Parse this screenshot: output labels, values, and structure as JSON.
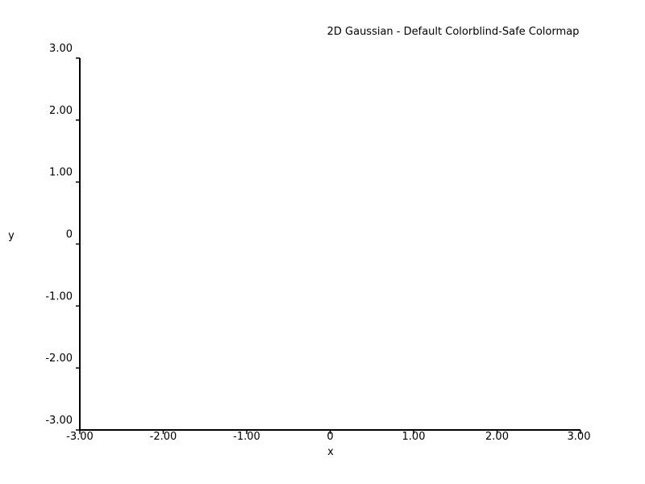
{
  "chart_data": {
    "type": "heatmap",
    "title": "2D Gaussian - Default Colorblind-Safe Colormap",
    "xlabel": "x",
    "ylabel": "y",
    "xlim": [
      -3,
      3
    ],
    "ylim": [
      -3,
      3
    ],
    "x_ticks": [
      -3,
      -2,
      -1,
      0,
      1,
      2,
      3
    ],
    "x_tick_labels": [
      "-3.00",
      "-2.00",
      "-1.00",
      "0",
      "1.00",
      "2.00",
      "3.00"
    ],
    "y_ticks": [
      3,
      2,
      1,
      0,
      -1,
      -2,
      -3
    ],
    "y_tick_labels": [
      "3.00",
      "2.00",
      "1.00",
      "0",
      "-1.00",
      "-2.00",
      "-3.00"
    ],
    "grid": false,
    "colors": {
      "axis": "#000000",
      "background": "#ffffff"
    }
  }
}
